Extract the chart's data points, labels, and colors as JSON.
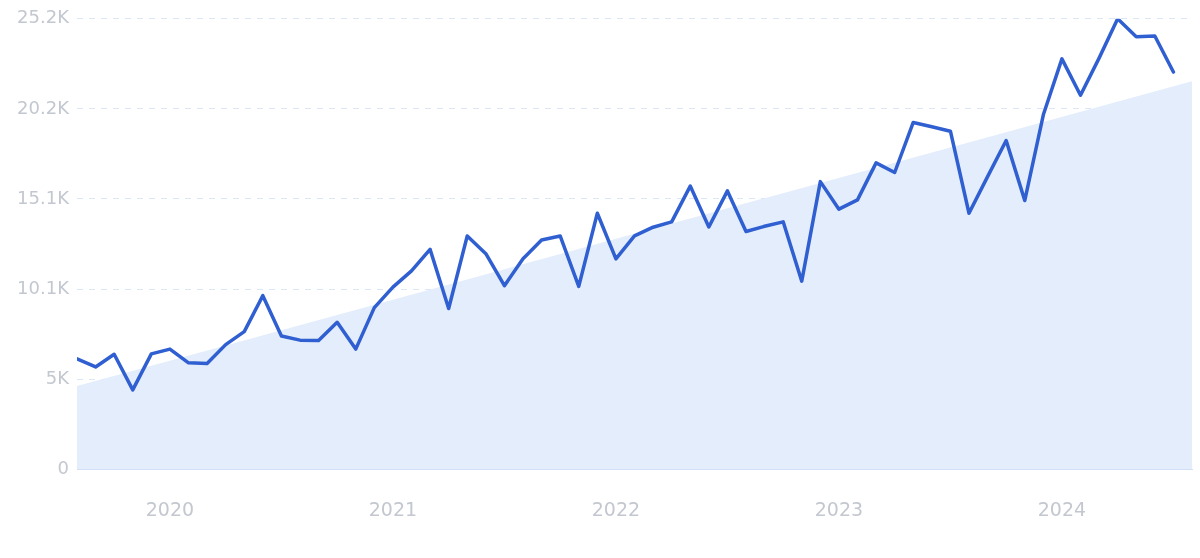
{
  "chart_data": {
    "type": "line",
    "x": [
      "2019-08",
      "2019-09",
      "2019-10",
      "2019-11",
      "2019-12",
      "2020-01",
      "2020-02",
      "2020-03",
      "2020-04",
      "2020-05",
      "2020-06",
      "2020-07",
      "2020-08",
      "2020-09",
      "2020-10",
      "2020-11",
      "2020-12",
      "2021-01",
      "2021-02",
      "2021-03",
      "2021-04",
      "2021-05",
      "2021-06",
      "2021-07",
      "2021-08",
      "2021-09",
      "2021-10",
      "2021-11",
      "2021-12",
      "2022-01",
      "2022-02",
      "2022-03",
      "2022-04",
      "2022-05",
      "2022-06",
      "2022-07",
      "2022-08",
      "2022-09",
      "2022-10",
      "2022-11",
      "2022-12",
      "2023-01",
      "2023-02",
      "2023-03",
      "2023-04",
      "2023-05",
      "2023-06",
      "2023-07",
      "2023-08",
      "2023-09",
      "2023-10",
      "2023-11",
      "2023-12",
      "2024-01",
      "2024-02",
      "2024-03",
      "2024-04",
      "2024-05",
      "2024-06",
      "2024-07"
    ],
    "series": [
      {
        "type": "area",
        "color": "#e3edfb",
        "x": [
          "2019-08",
          "2024-08"
        ],
        "values": [
          4650,
          21700
        ]
      },
      {
        "type": "line",
        "color": "#2f5fd0",
        "values": [
          6180,
          5720,
          6430,
          4440,
          6450,
          6720,
          5950,
          5910,
          6970,
          7700,
          9710,
          7450,
          7220,
          7200,
          8220,
          6720,
          9040,
          10190,
          11100,
          12300,
          8990,
          13050,
          12060,
          10270,
          11770,
          12820,
          13050,
          10230,
          14320,
          11770,
          13050,
          13540,
          13840,
          15840,
          13550,
          15570,
          13300,
          13590,
          13840,
          10520,
          16090,
          14550,
          15070,
          17140,
          16600,
          19400,
          19160,
          18910,
          14320,
          16370,
          18390,
          15030,
          19830,
          22960,
          20920,
          23000,
          25200,
          24200,
          24240,
          22220
        ]
      }
    ],
    "xlim": [
      "2019-08",
      "2024-08"
    ],
    "xticks": [
      "2020",
      "2021",
      "2022",
      "2023",
      "2024"
    ],
    "ylim": [
      0,
      25200
    ],
    "yticks": [
      0,
      {
        "value": 5040,
        "label": "5K"
      },
      {
        "value": 10080,
        "label": "10.1K"
      },
      {
        "value": 15120,
        "label": "15.1K"
      },
      {
        "value": 20160,
        "label": "20.2K"
      },
      {
        "value": 25200,
        "label": "25.2K"
      }
    ],
    "grid": "y",
    "legend": false,
    "marker": "none",
    "line_style": "solid"
  }
}
